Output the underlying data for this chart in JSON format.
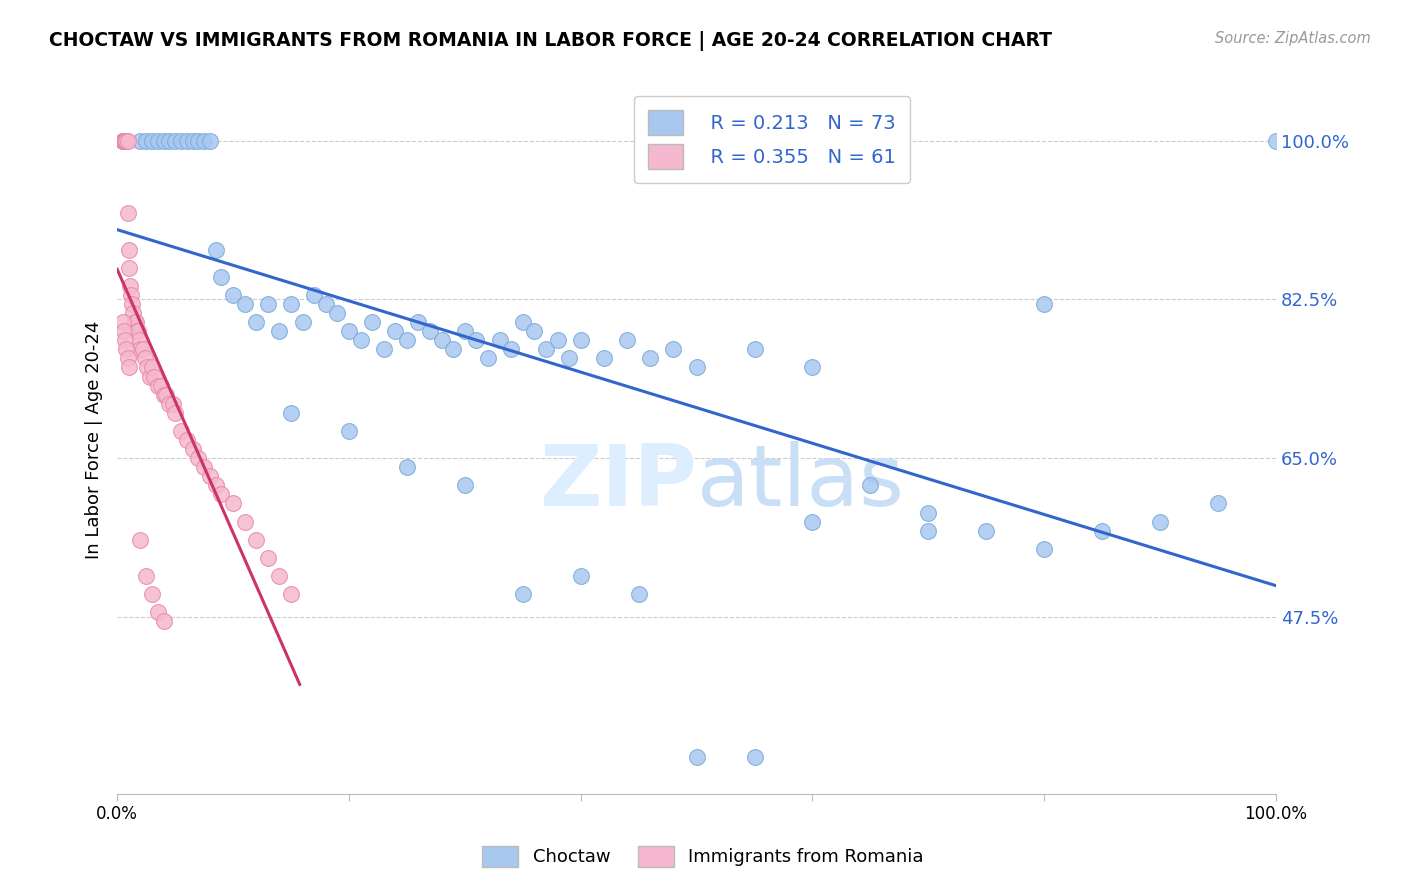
{
  "title": "CHOCTAW VS IMMIGRANTS FROM ROMANIA IN LABOR FORCE | AGE 20-24 CORRELATION CHART",
  "source": "Source: ZipAtlas.com",
  "ylabel": "In Labor Force | Age 20-24",
  "ytick_labels": [
    "47.5%",
    "65.0%",
    "82.5%",
    "100.0%"
  ],
  "ytick_vals": [
    0.475,
    0.65,
    0.825,
    1.0
  ],
  "xlim": [
    0.0,
    1.0
  ],
  "ylim": [
    0.28,
    1.06
  ],
  "legend_blue_r": "R = 0.213",
  "legend_blue_n": "N = 73",
  "legend_pink_r": "R = 0.355",
  "legend_pink_n": "N = 61",
  "blue_color": "#a8c8f0",
  "blue_edge_color": "#7aaad8",
  "pink_color": "#f5b8ce",
  "pink_edge_color": "#e888a8",
  "blue_line_color": "#3366cc",
  "pink_line_color": "#cc3366",
  "watermark_color": "#ddeeff",
  "blue_points_x": [
    0.02,
    0.025,
    0.03,
    0.035,
    0.04,
    0.045,
    0.05,
    0.055,
    0.06,
    0.065,
    0.07,
    0.075,
    0.08,
    0.085,
    0.09,
    0.1,
    0.11,
    0.12,
    0.13,
    0.14,
    0.15,
    0.16,
    0.17,
    0.18,
    0.19,
    0.2,
    0.21,
    0.22,
    0.23,
    0.24,
    0.25,
    0.26,
    0.27,
    0.28,
    0.29,
    0.3,
    0.31,
    0.32,
    0.33,
    0.34,
    0.35,
    0.36,
    0.37,
    0.38,
    0.39,
    0.4,
    0.42,
    0.44,
    0.46,
    0.48,
    0.5,
    0.55,
    0.6,
    0.65,
    0.7,
    0.75,
    0.8,
    0.85,
    0.9,
    0.95,
    1.0,
    0.15,
    0.2,
    0.25,
    0.3,
    0.35,
    0.4,
    0.45,
    0.5,
    0.55,
    0.6,
    0.7,
    0.8
  ],
  "blue_points_y": [
    1.0,
    1.0,
    1.0,
    1.0,
    1.0,
    1.0,
    1.0,
    1.0,
    1.0,
    1.0,
    1.0,
    1.0,
    1.0,
    0.88,
    0.85,
    0.83,
    0.82,
    0.8,
    0.82,
    0.79,
    0.82,
    0.8,
    0.83,
    0.82,
    0.81,
    0.79,
    0.78,
    0.8,
    0.77,
    0.79,
    0.78,
    0.8,
    0.79,
    0.78,
    0.77,
    0.79,
    0.78,
    0.76,
    0.78,
    0.77,
    0.8,
    0.79,
    0.77,
    0.78,
    0.76,
    0.78,
    0.76,
    0.78,
    0.76,
    0.77,
    0.75,
    0.77,
    0.75,
    0.62,
    0.59,
    0.57,
    0.55,
    0.57,
    0.58,
    0.6,
    1.0,
    0.7,
    0.68,
    0.64,
    0.62,
    0.5,
    0.52,
    0.5,
    0.32,
    0.32,
    0.58,
    0.57,
    0.82
  ],
  "pink_points_x": [
    0.005,
    0.005,
    0.005,
    0.006,
    0.006,
    0.007,
    0.007,
    0.008,
    0.008,
    0.009,
    0.009,
    0.01,
    0.01,
    0.011,
    0.012,
    0.013,
    0.014,
    0.015,
    0.016,
    0.017,
    0.018,
    0.019,
    0.02,
    0.022,
    0.024,
    0.026,
    0.028,
    0.03,
    0.032,
    0.035,
    0.038,
    0.04,
    0.042,
    0.045,
    0.048,
    0.05,
    0.055,
    0.06,
    0.065,
    0.07,
    0.075,
    0.08,
    0.085,
    0.09,
    0.1,
    0.11,
    0.12,
    0.13,
    0.14,
    0.15,
    0.005,
    0.006,
    0.007,
    0.008,
    0.009,
    0.01,
    0.02,
    0.025,
    0.03,
    0.035,
    0.04
  ],
  "pink_points_y": [
    1.0,
    1.0,
    1.0,
    1.0,
    1.0,
    1.0,
    1.0,
    1.0,
    1.0,
    1.0,
    0.92,
    0.88,
    0.86,
    0.84,
    0.83,
    0.82,
    0.81,
    0.8,
    0.8,
    0.79,
    0.79,
    0.78,
    0.77,
    0.77,
    0.76,
    0.75,
    0.74,
    0.75,
    0.74,
    0.73,
    0.73,
    0.72,
    0.72,
    0.71,
    0.71,
    0.7,
    0.68,
    0.67,
    0.66,
    0.65,
    0.64,
    0.63,
    0.62,
    0.61,
    0.6,
    0.58,
    0.56,
    0.54,
    0.52,
    0.5,
    0.8,
    0.79,
    0.78,
    0.77,
    0.76,
    0.75,
    0.56,
    0.52,
    0.5,
    0.48,
    0.47
  ]
}
